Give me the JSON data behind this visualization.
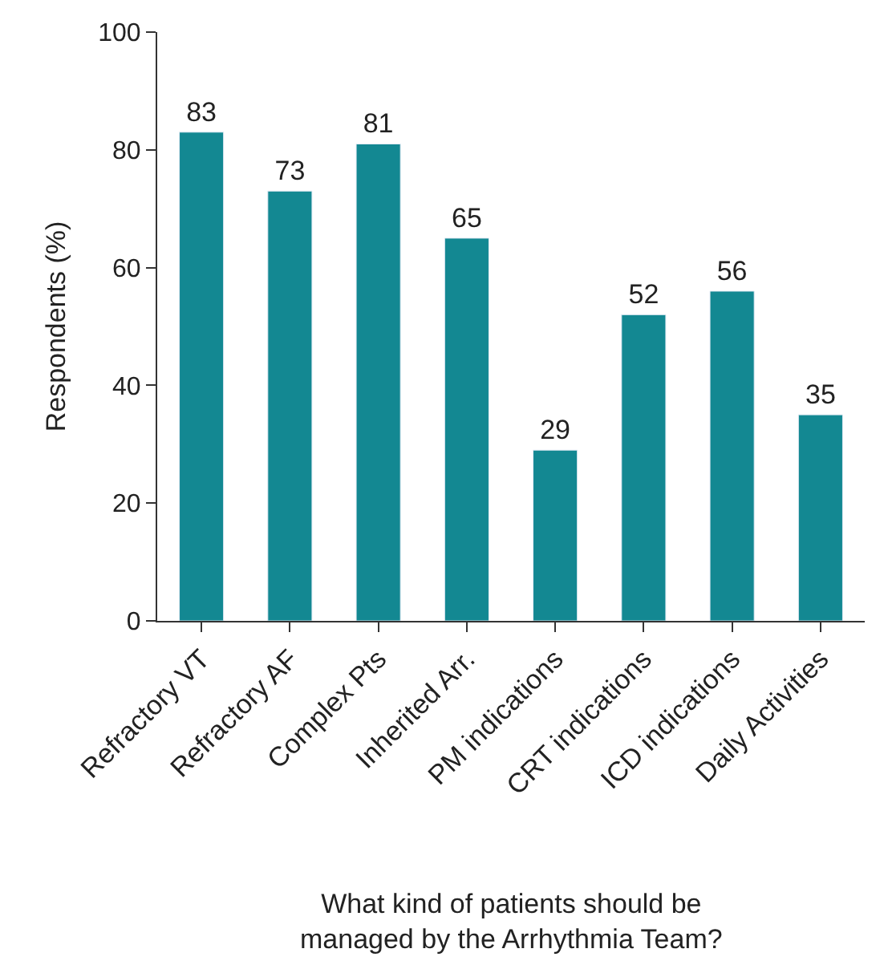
{
  "chart_data": {
    "type": "bar",
    "categories": [
      "Refractory VT",
      "Refractory AF",
      "Complex Pts",
      "Inherited Arr.",
      "PM indications",
      "CRT indications",
      "ICD indications",
      "Daily Activities"
    ],
    "values": [
      83,
      73,
      81,
      65,
      29,
      52,
      56,
      35
    ],
    "color": "#138892",
    "xlabel": "What kind of patients should be\nmanaged by the Arrhythmia Team?",
    "ylabel": "Respondents (%)",
    "ylim": [
      0,
      100
    ],
    "yticks": [
      0,
      20,
      40,
      60,
      80,
      100
    ],
    "data_labels": true
  }
}
